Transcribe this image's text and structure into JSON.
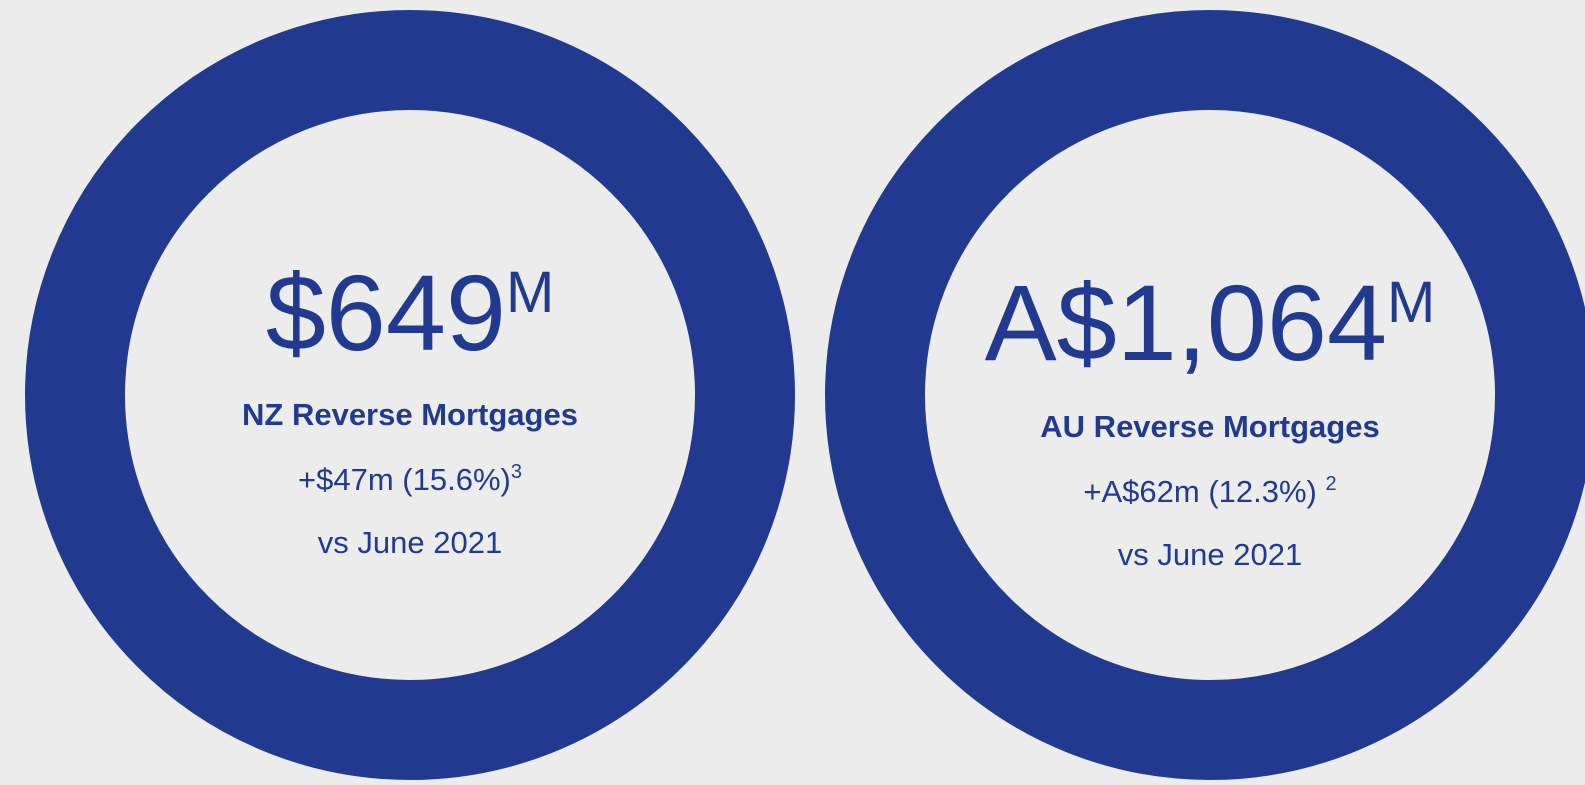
{
  "cards": [
    {
      "value": "$649",
      "unit": "M",
      "label": "NZ Reverse Mortgages",
      "change": "+$47m (15.6%)",
      "footnote": "3",
      "period": "vs June 2021"
    },
    {
      "value": "A$1,064",
      "unit": "M",
      "label": "AU Reverse Mortgages",
      "change": "+A$62m (12.3%) ",
      "footnote": "2",
      "period": "vs June 2021"
    }
  ]
}
